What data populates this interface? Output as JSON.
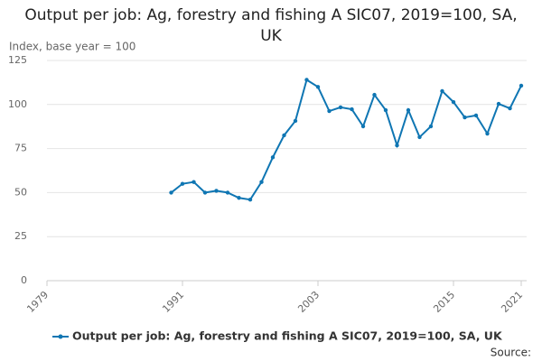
{
  "chart_data": {
    "type": "line",
    "title": "Output per job: Ag, forestry and fishing A SIC07, 2019=100, SA, UK",
    "y_axis_label": "Index, base year = 100",
    "source": "Source:",
    "x": [
      1990,
      1991,
      1992,
      1993,
      1994,
      1995,
      1996,
      1997,
      1998,
      1999,
      2000,
      2001,
      2002,
      2003,
      2004,
      2005,
      2006,
      2007,
      2008,
      2009,
      2010,
      2011,
      2012,
      2013,
      2014,
      2015,
      2016,
      2017,
      2018,
      2019,
      2020,
      2021
    ],
    "series": [
      {
        "name": "Output per job: Ag, forestry and fishing A SIC07, 2019=100, SA, UK",
        "color": "#0f76b3",
        "values": [
          50,
          55,
          56,
          50,
          51,
          50,
          47,
          46,
          56,
          70,
          82.5,
          90.7,
          114,
          110,
          96.3,
          98.4,
          97.3,
          87.6,
          105.5,
          96.8,
          76.8,
          96.8,
          81.5,
          87.6,
          107.6,
          101.4,
          92.7,
          93.8,
          83.5,
          100.4,
          97.8,
          110.7
        ]
      }
    ],
    "xlim": [
      1979,
      2021
    ],
    "xticks": [
      1979,
      1991,
      2003,
      2015,
      2021
    ],
    "ylim": [
      0,
      125
    ],
    "yticks": [
      0,
      25,
      50,
      75,
      100,
      125
    ],
    "grid": true,
    "legend": "bottom"
  }
}
